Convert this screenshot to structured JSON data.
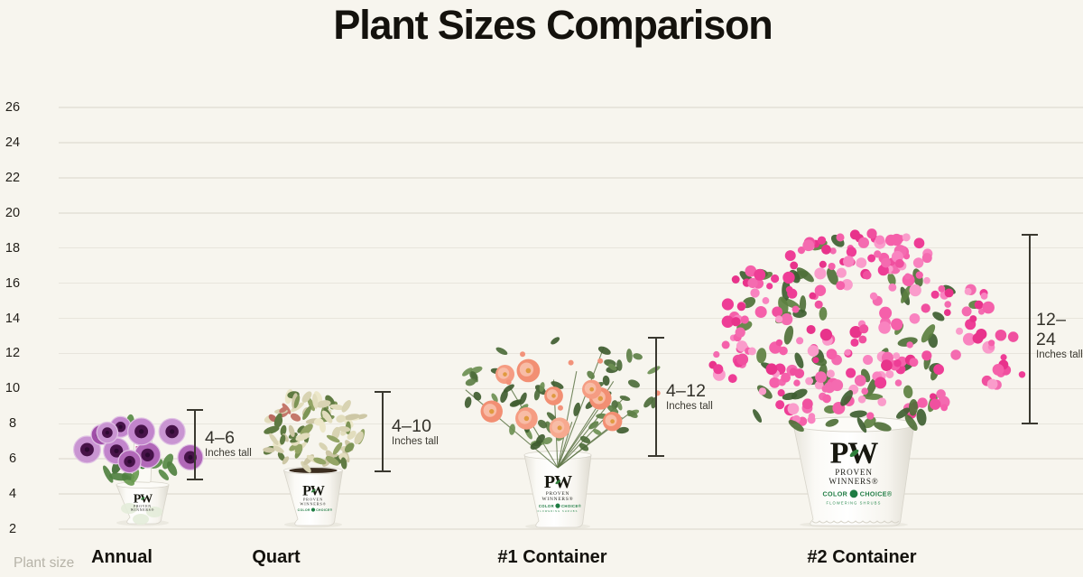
{
  "title": "Plant Sizes Comparison",
  "x_axis": {
    "label": "Plant size"
  },
  "plants": [
    {
      "name": "Annual",
      "range_label": "4–6",
      "range_sub": "Inches tall"
    },
    {
      "name": "Quart",
      "range_label": "4–10",
      "range_sub": "Inches tall"
    },
    {
      "name": "#1 Container",
      "range_label": "4–12",
      "range_sub": "Inches tall"
    },
    {
      "name": "#2 Container",
      "range_label": "12–24",
      "range_sub": "Inches tall"
    }
  ],
  "branding": {
    "logo": "PW",
    "proven": "PROVEN",
    "winners": "WINNERS®",
    "color": "COLOR",
    "choice": "CHOICE®",
    "shrubs": "FLOWERING SHRUBS"
  },
  "colors": {
    "background": "#f7f5ee",
    "gridline": "#e8e5dc",
    "text": "#14120d",
    "muted_label": "#b6b3a8",
    "dimension": "#3a382f",
    "weigela_pink": "#ee3d96",
    "petunia_purple": "#a04fa8",
    "rose_salmon": "#f28f73",
    "leaf_green": "#4c6b3a",
    "brand_green": "#1e7c43",
    "pot_white": "#fdfcfa"
  },
  "chart_data": {
    "type": "bar",
    "variant": "pictorial-height-range",
    "title": "Plant Sizes Comparison",
    "xlabel": "Plant size",
    "ylabel": "",
    "categories": [
      "Annual",
      "Quart",
      "#1 Container",
      "#2 Container"
    ],
    "series": [
      {
        "name": "Height range (inches tall)",
        "values": [
          [
            4,
            6
          ],
          [
            4,
            10
          ],
          [
            4,
            12
          ],
          [
            12,
            24
          ]
        ]
      }
    ],
    "value_labels": [
      "4–6 Inches tall",
      "4–10 Inches tall",
      "4–12 Inches tall",
      "12–24 Inches tall"
    ],
    "yticks": [
      2,
      4,
      6,
      8,
      10,
      12,
      14,
      16,
      18,
      20,
      22,
      24,
      26
    ],
    "ylim": [
      0,
      27
    ],
    "grid": true,
    "legend": false
  }
}
